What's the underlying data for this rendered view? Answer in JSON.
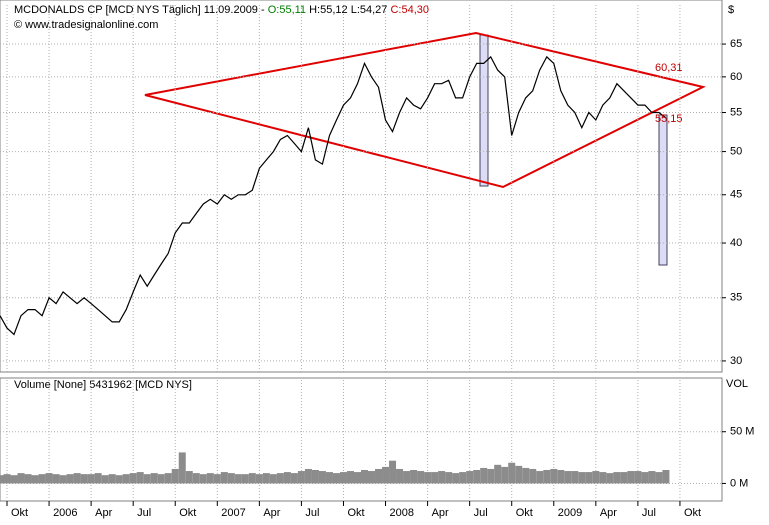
{
  "chart_data": [
    {
      "type": "line",
      "header": [
        {
          "text": "MCDONALDS CP [MCD NYS  Täglich] 11.09.2009 - ",
          "color": "#000000"
        },
        {
          "text": "O:55,11",
          "color": "#008000"
        },
        {
          "text": "H:55,12",
          "color": "#000000"
        },
        {
          "text": "L:54,27",
          "color": "#000000"
        },
        {
          "text": "C:54,30",
          "color": "#c00000"
        }
      ],
      "source": "© www.tradesignalonline.com",
      "y_unit": "$",
      "log_scale": true,
      "grid": true,
      "categories": [
        null,
        "Okt",
        null,
        null,
        null,
        null,
        null,
        "2006",
        null,
        null,
        null,
        null,
        null,
        "Apr",
        null,
        null,
        null,
        null,
        null,
        "Jul",
        null,
        null,
        null,
        null,
        null,
        "Okt",
        null,
        null,
        null,
        null,
        null,
        "2007",
        null,
        null,
        null,
        null,
        null,
        "Apr",
        null,
        null,
        null,
        null,
        null,
        "Jul",
        null,
        null,
        null,
        null,
        null,
        "Okt",
        null,
        null,
        null,
        null,
        null,
        "2008",
        null,
        null,
        null,
        null,
        null,
        "Apr",
        null,
        null,
        null,
        null,
        null,
        "Jul",
        null,
        null,
        null,
        null,
        null,
        "Okt",
        null,
        null,
        null,
        null,
        null,
        "2009",
        null,
        null,
        null,
        null,
        null,
        "Apr",
        null,
        null,
        null,
        null,
        null,
        "Jul",
        null,
        null,
        null,
        null,
        null,
        "Okt",
        null,
        null,
        null,
        null,
        null,
        null
      ],
      "series": [
        {
          "name": "MCD",
          "color": "#000000",
          "values": [
            33.5,
            32.5,
            32,
            33.5,
            34,
            34,
            33.5,
            35,
            34.5,
            35.5,
            35,
            34.5,
            35,
            34.5,
            34,
            33.5,
            33,
            33,
            34,
            35.5,
            37,
            36,
            37,
            38,
            39,
            41,
            42,
            42,
            43,
            44,
            44.5,
            44,
            45,
            44.5,
            45,
            45,
            45.5,
            48,
            49,
            50,
            51.5,
            52,
            51,
            50,
            53,
            49,
            48.5,
            52,
            54,
            56,
            57,
            59,
            62,
            60,
            58.5,
            54,
            52.5,
            55,
            57,
            56,
            55.5,
            57,
            59,
            59,
            59.5,
            57,
            57,
            60,
            62,
            62,
            63,
            61,
            60,
            52,
            55,
            57,
            58,
            61,
            63,
            62,
            58,
            56,
            55,
            53,
            55,
            54,
            56,
            57,
            59,
            58,
            57,
            56,
            56,
            55,
            55,
            54.3,
            null,
            null,
            null,
            null,
            null,
            null,
            null,
            null
          ]
        }
      ],
      "annotations": [
        "60,31",
        "55,15"
      ],
      "ylim": [
        29.2,
        71.5
      ],
      "yticks": [
        30,
        35,
        40,
        45,
        50,
        55,
        60,
        65
      ]
    },
    {
      "type": "bar",
      "header": "Volume [None] 5431962 [MCD NYS]",
      "y_unit": "VOL",
      "grid": true,
      "series": [
        {
          "name": "Volume",
          "color": "#8c8c8c",
          "values": [
            8,
            9,
            8,
            10,
            9,
            8,
            9,
            10,
            9,
            8,
            9,
            10,
            9,
            9,
            10,
            8,
            9,
            8,
            9,
            10,
            11,
            9,
            10,
            9,
            10,
            14,
            30,
            12,
            10,
            9,
            10,
            9,
            11,
            10,
            9,
            9,
            10,
            9,
            10,
            9,
            10,
            11,
            10,
            12,
            14,
            13,
            12,
            11,
            10,
            11,
            12,
            11,
            13,
            12,
            14,
            16,
            22,
            14,
            12,
            13,
            12,
            11,
            11,
            12,
            11,
            10,
            11,
            12,
            13,
            15,
            14,
            18,
            16,
            20,
            17,
            15,
            14,
            12,
            13,
            14,
            13,
            12,
            12,
            11,
            11,
            12,
            11,
            10,
            11,
            11,
            12,
            12,
            11,
            12,
            11,
            13,
            null,
            null,
            null,
            null,
            null,
            null,
            null,
            null
          ]
        }
      ],
      "ylim": [
        -16,
        100
      ],
      "yticks": [
        {
          "value": 0,
          "label": "0 M"
        },
        {
          "value": 50,
          "label": "50 M"
        }
      ]
    }
  ]
}
